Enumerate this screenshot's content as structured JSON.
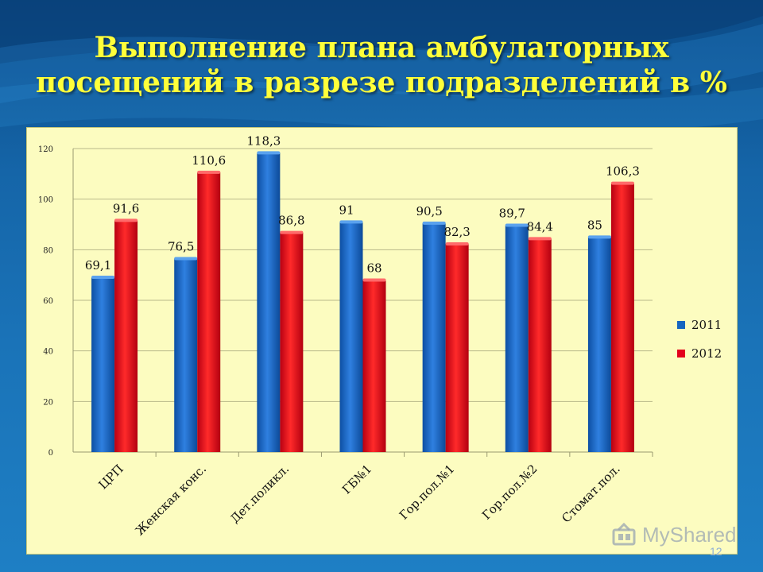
{
  "slide": {
    "title_line1": "Выполнение плана амбулаторных",
    "title_line2": "посещений в разрезе подразделений в %",
    "page_number": "12",
    "watermark": "MyShared"
  },
  "colors": {
    "s2011": "#1565c0",
    "s2011_light": "#4f95e0",
    "s2012": "#e3001b",
    "s2012_light": "#ff4a4a"
  },
  "chart_data": {
    "type": "bar",
    "categories": [
      "ЦРП",
      "Женская конс.",
      "Дет.поликл.",
      "ГБ№1",
      "Гор.пол.№1",
      "Гор.пол.№2",
      "Стомат.пол."
    ],
    "series": [
      {
        "name": "2011",
        "values": [
          69.1,
          76.5,
          118.3,
          91,
          90.5,
          89.7,
          85
        ],
        "labels": [
          "69,1",
          "76,5",
          "118,3",
          "91",
          "90,5",
          "89,7",
          "85"
        ]
      },
      {
        "name": "2012",
        "values": [
          91.6,
          110.6,
          86.8,
          68,
          82.3,
          84.4,
          106.3
        ],
        "labels": [
          "91,6",
          "110,6",
          "86,8",
          "68",
          "82,3",
          "84,4",
          "106,3"
        ]
      }
    ],
    "yticks": [
      "0",
      "20",
      "40",
      "60",
      "80",
      "100",
      "120"
    ],
    "ylim": [
      0,
      120
    ],
    "legend_position": "right",
    "grid": true
  }
}
